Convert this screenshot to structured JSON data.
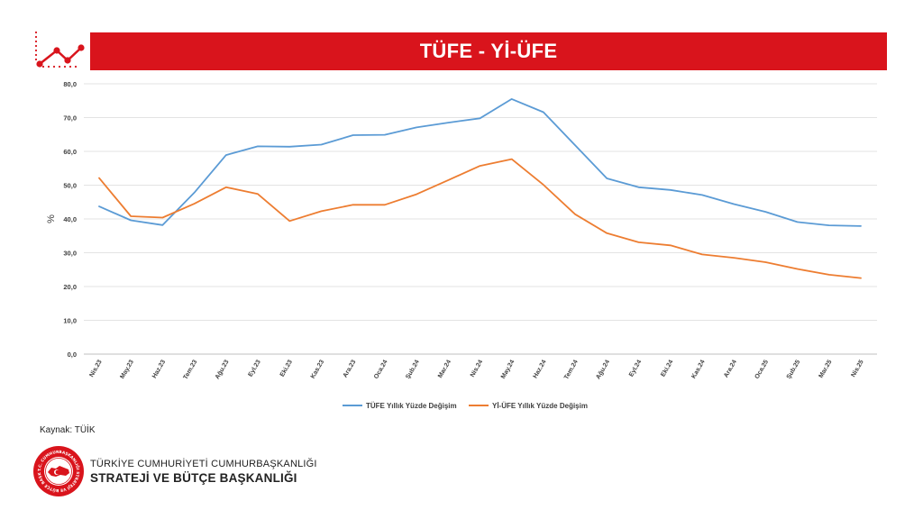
{
  "header": {
    "title": "TÜFE - Yİ-ÜFE",
    "accent_color": "#d9141c",
    "icon": "trend-line-icon"
  },
  "chart_data": {
    "type": "line",
    "title": "TÜFE - Yİ-ÜFE",
    "ylabel": "%",
    "xlabel": "",
    "ylim": [
      0,
      80
    ],
    "yticks": [
      "0,0",
      "10,0",
      "20,0",
      "30,0",
      "40,0",
      "50,0",
      "60,0",
      "70,0",
      "80,0"
    ],
    "grid": true,
    "legend_position": "bottom",
    "categories": [
      "Nis.23",
      "May.23",
      "Haz.23",
      "Tem.23",
      "Ağu.23",
      "Eyl.23",
      "Eki.23",
      "Kas.23",
      "Ara.23",
      "Oca.24",
      "Şub.24",
      "Mar.24",
      "Nis.24",
      "May.24",
      "Haz.24",
      "Tem.24",
      "Ağu.24",
      "Eyl.24",
      "Eki.24",
      "Kas.24",
      "Ara.24",
      "Oca.25",
      "Şub.25",
      "Mar.25",
      "Nis.25"
    ],
    "series": [
      {
        "name": "TÜFE Yıllık Yüzde Değişim",
        "color": "#5b9bd5",
        "values": [
          43.7,
          39.6,
          38.2,
          47.8,
          58.9,
          61.5,
          61.4,
          62.0,
          64.8,
          64.9,
          67.1,
          68.5,
          69.8,
          75.5,
          71.6,
          61.8,
          52.0,
          49.4,
          48.6,
          47.1,
          44.4,
          42.1,
          39.1,
          38.1,
          37.9
        ]
      },
      {
        "name": "Yİ-ÜFE Yıllık Yüzde Değişim",
        "color": "#ed7d31",
        "values": [
          52.1,
          40.8,
          40.4,
          44.5,
          49.4,
          47.4,
          39.4,
          42.3,
          44.2,
          44.2,
          47.3,
          51.5,
          55.7,
          57.7,
          50.1,
          41.4,
          35.8,
          33.1,
          32.2,
          29.5,
          28.5,
          27.2,
          25.2,
          23.5,
          22.5
        ]
      }
    ]
  },
  "footer": {
    "source": "Kaynak: TÜİK",
    "org_line1": "TÜRKİYE CUMHURİYETİ CUMHURBAŞKANLIĞI",
    "org_line2": "STRATEJİ VE BÜTÇE BAŞKANLIĞI",
    "logo_icon": "sbb-seal-icon",
    "logo_ring_text": "T.C. CUMHURBAŞKANLIĞI STRATEJİ VE BÜTÇE BAŞKANLIĞI"
  }
}
